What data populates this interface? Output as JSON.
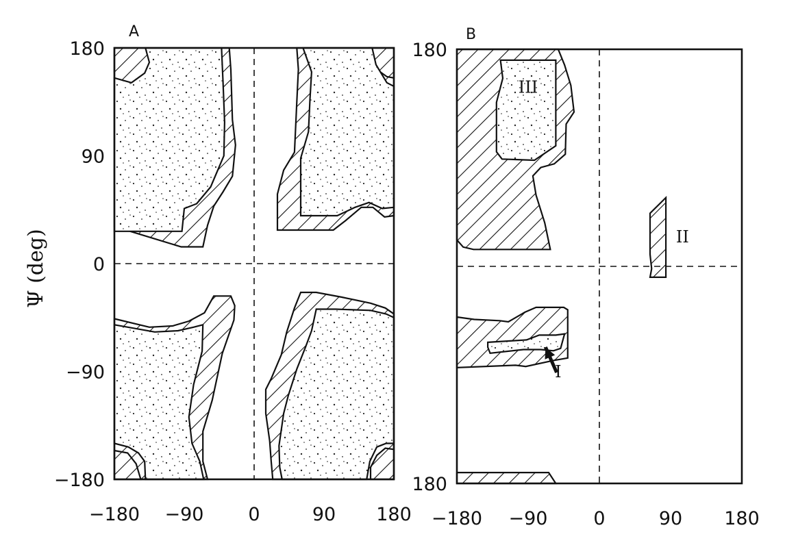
{
  "chart_data": [
    {
      "type": "ramachandran-contour",
      "panel_label": "A",
      "ylabel": "Ψ (deg)",
      "xlim": [
        -180,
        180
      ],
      "ylim": [
        -180,
        180
      ],
      "x_ticks": [
        "-180",
        "-90",
        "0",
        "90",
        "180"
      ],
      "y_ticks": [
        "180",
        "90",
        "0",
        "-90",
        "-180"
      ],
      "grid": false,
      "zero_lines": true,
      "allowed_regions": [
        {
          "points": [
            [
              -180,
              180
            ],
            [
              -148,
              180
            ],
            [
              -144,
              169
            ],
            [
              -148,
              160
            ],
            [
              -162,
              157
            ],
            [
              -180,
              160
            ]
          ]
        },
        {
          "points": [
            [
              -180,
              180
            ],
            [
              -32,
              180
            ],
            [
              -30,
              162
            ],
            [
              -28,
              120
            ],
            [
              -24,
              99
            ],
            [
              -28,
              73
            ],
            [
              -40,
              60
            ],
            [
              -52,
              48
            ],
            [
              -60,
              32
            ],
            [
              -66,
              14
            ],
            [
              -94,
              14
            ],
            [
              -180,
              31
            ]
          ]
        },
        {
          "points": [
            [
              55,
              180
            ],
            [
              180,
              180
            ],
            [
              180,
              40
            ],
            [
              168,
              39
            ],
            [
              153,
              47
            ],
            [
              138,
              47
            ],
            [
              118,
              36
            ],
            [
              102,
              28
            ],
            [
              30,
              28
            ],
            [
              30,
              58
            ],
            [
              38,
              78
            ],
            [
              52,
              93
            ],
            [
              55,
              135
            ],
            [
              57,
              162
            ]
          ]
        },
        {
          "points": [
            [
              148,
              180
            ],
            [
              180,
              180
            ],
            [
              180,
              155
            ],
            [
              171,
              156
            ],
            [
              156,
              163
            ],
            [
              150,
              170
            ]
          ]
        },
        {
          "points": [
            [
              -180,
              -46
            ],
            [
              -135,
              -53
            ],
            [
              -105,
              -52
            ],
            [
              -84,
              -48
            ],
            [
              -64,
              -41
            ],
            [
              -52,
              -27
            ],
            [
              -30,
              -27
            ],
            [
              -25,
              -35
            ],
            [
              -26,
              -47
            ],
            [
              -41,
              -75
            ],
            [
              -54,
              -114
            ],
            [
              -66,
              -140
            ],
            [
              -66,
              -165
            ],
            [
              -60,
              -180
            ],
            [
              -180,
              -180
            ]
          ]
        },
        {
          "points": [
            [
              -180,
              -180
            ],
            [
              -146,
              -180
            ],
            [
              -152,
              -167
            ],
            [
              -163,
              -158
            ],
            [
              -180,
              -156
            ]
          ]
        },
        {
          "points": [
            [
              24,
              -180
            ],
            [
              180,
              -180
            ],
            [
              180,
              -42
            ],
            [
              169,
              -37
            ],
            [
              150,
              -33
            ],
            [
              113,
              -28
            ],
            [
              80,
              -24
            ],
            [
              60,
              -24
            ],
            [
              52,
              -37
            ],
            [
              42,
              -57
            ],
            [
              35,
              -76
            ],
            [
              22,
              -96
            ],
            [
              15,
              -105
            ],
            [
              15,
              -125
            ],
            [
              20,
              -148
            ],
            [
              22,
              -165
            ]
          ]
        },
        {
          "points": [
            [
              150,
              -180
            ],
            [
              180,
              -180
            ],
            [
              180,
              -155
            ],
            [
              169,
              -154
            ],
            [
              158,
              -160
            ],
            [
              150,
              -170
            ]
          ]
        }
      ],
      "fully_allowed_regions": [
        {
          "points": [
            [
              -140,
              180
            ],
            [
              -42,
              180
            ],
            [
              -40,
              150
            ],
            [
              -38,
              118
            ],
            [
              -39,
              90
            ],
            [
              -56,
              64
            ],
            [
              -74,
              50
            ],
            [
              -90,
              46
            ],
            [
              -93,
              27
            ],
            [
              -180,
              27
            ],
            [
              -180,
              155
            ],
            [
              -158,
              151
            ],
            [
              -141,
              159
            ],
            [
              -135,
              168
            ]
          ]
        },
        {
          "points": [
            [
              63,
              180
            ],
            [
              152,
              180
            ],
            [
              157,
              166
            ],
            [
              171,
              151
            ],
            [
              180,
              148
            ],
            [
              180,
              47
            ],
            [
              165,
              46
            ],
            [
              148,
              51
            ],
            [
              130,
              47
            ],
            [
              107,
              40
            ],
            [
              60,
              40
            ],
            [
              60,
              88
            ],
            [
              70,
              110
            ],
            [
              72,
              138
            ],
            [
              74,
              160
            ]
          ]
        },
        {
          "points": [
            [
              -180,
              -51
            ],
            [
              -128,
              -57
            ],
            [
              -98,
              -56
            ],
            [
              -78,
              -53
            ],
            [
              -66,
              -51
            ],
            [
              -67,
              -73
            ],
            [
              -78,
              -101
            ],
            [
              -84,
              -128
            ],
            [
              -80,
              -150
            ],
            [
              -70,
              -165
            ],
            [
              -65,
              -180
            ],
            [
              -140,
              -180
            ],
            [
              -141,
              -165
            ],
            [
              -149,
              -158
            ],
            [
              -162,
              -153
            ],
            [
              -180,
              -150
            ]
          ]
        },
        {
          "points": [
            [
              36,
              -180
            ],
            [
              145,
              -180
            ],
            [
              149,
              -165
            ],
            [
              158,
              -153
            ],
            [
              170,
              -150
            ],
            [
              180,
              -150
            ],
            [
              180,
              -45
            ],
            [
              170,
              -42
            ],
            [
              150,
              -39
            ],
            [
              105,
              -38
            ],
            [
              80,
              -38
            ],
            [
              74,
              -56
            ],
            [
              66,
              -70
            ],
            [
              55,
              -88
            ],
            [
              44,
              -110
            ],
            [
              38,
              -125
            ],
            [
              32,
              -152
            ],
            [
              33,
              -170
            ]
          ]
        }
      ],
      "region_labels": []
    },
    {
      "type": "ramachandran-contour",
      "panel_label": "B",
      "xlim": [
        -180,
        180
      ],
      "ylim": [
        -180,
        180
      ],
      "x_ticks": [
        "-180",
        "-90",
        "0",
        "90",
        "180"
      ],
      "y_ticks": [
        "180",
        "180"
      ],
      "grid": false,
      "zero_lines": true,
      "allowed_regions": [
        {
          "points": [
            [
              -180,
              180
            ],
            [
              -52,
              180
            ],
            [
              -44,
              167
            ],
            [
              -36,
              150
            ],
            [
              -32,
              128
            ],
            [
              -42,
              118
            ],
            [
              -43,
              93
            ],
            [
              -57,
              85
            ],
            [
              -74,
              82
            ],
            [
              -84,
              75
            ],
            [
              -80,
              59
            ],
            [
              -69,
              36
            ],
            [
              -62,
              14
            ],
            [
              -159,
              14
            ],
            [
              -172,
              16
            ],
            [
              -180,
              22
            ]
          ]
        },
        {
          "points": [
            [
              -180,
              -42
            ],
            [
              -158,
              -44
            ],
            [
              -126,
              -45
            ],
            [
              -115,
              -46
            ],
            [
              -94,
              -38
            ],
            [
              -80,
              -34
            ],
            [
              -45,
              -34
            ],
            [
              -40,
              -36
            ],
            [
              -40,
              -76
            ],
            [
              -58,
              -78
            ],
            [
              -93,
              -83
            ],
            [
              -106,
              -82
            ],
            [
              -180,
              -84
            ]
          ]
        },
        {
          "points": [
            [
              66,
              -2
            ],
            [
              64,
              -9
            ],
            [
              84,
              -9
            ],
            [
              84,
              39
            ],
            [
              84,
              57
            ],
            [
              64,
              44
            ],
            [
              64,
              10
            ]
          ]
        },
        {
          "points": [
            [
              -180,
              -171
            ],
            [
              -64,
              -171
            ],
            [
              -55,
              -180
            ],
            [
              -180,
              -180
            ]
          ]
        }
      ],
      "fully_allowed_regions": [
        {
          "points": [
            [
              -125,
              171
            ],
            [
              -55,
              171
            ],
            [
              -55,
              100
            ],
            [
              -82,
              88
            ],
            [
              -123,
              89
            ],
            [
              -130,
              95
            ],
            [
              -130,
              136
            ],
            [
              -122,
              156
            ]
          ]
        },
        {
          "points": [
            [
              -141,
              -63
            ],
            [
              -92,
              -61
            ],
            [
              -76,
              -57
            ],
            [
              -55,
              -57
            ],
            [
              -44,
              -56
            ],
            [
              -49,
              -68
            ],
            [
              -58,
              -70
            ],
            [
              -74,
              -69
            ],
            [
              -96,
              -69
            ],
            [
              -138,
              -72
            ],
            [
              -141,
              -67
            ]
          ]
        }
      ],
      "region_labels": [
        {
          "text": "III",
          "x": -90,
          "y": 144
        },
        {
          "text": "II",
          "x": 105,
          "y": 20
        },
        {
          "text": "I",
          "x": -52,
          "y": -92
        }
      ],
      "arrows": [
        {
          "from": [
            -54,
            -88
          ],
          "to": [
            -68,
            -67
          ]
        }
      ]
    }
  ]
}
